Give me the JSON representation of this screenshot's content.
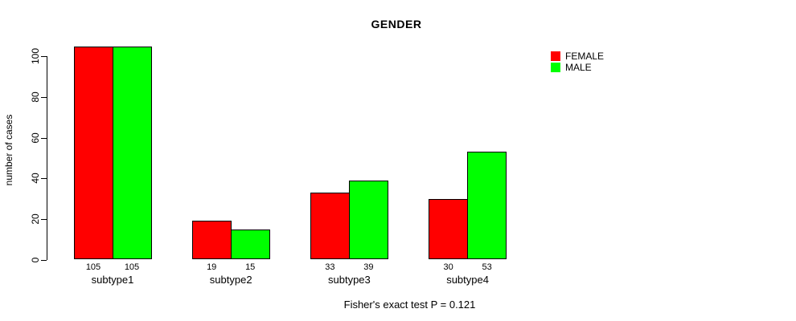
{
  "chart_data": {
    "type": "bar",
    "title": "GENDER",
    "xlabel": "",
    "ylabel": "number of cases",
    "categories": [
      "subtype1",
      "subtype2",
      "subtype3",
      "subtype4"
    ],
    "series": [
      {
        "name": "FEMALE",
        "color": "#FF0000",
        "values": [
          105,
          19,
          33,
          30
        ]
      },
      {
        "name": "MALE",
        "color": "#00FF00",
        "values": [
          105,
          15,
          39,
          53
        ]
      }
    ],
    "value_labels_shown": true,
    "yticks": [
      0,
      20,
      40,
      60,
      80,
      100
    ],
    "axis_range": [
      0,
      100
    ],
    "grid": false,
    "legend_position": "top-right",
    "annotation": "Fisher's exact test P = 0.121",
    "bar_border_color": "#000000",
    "background_color": "#FFFFFF"
  }
}
